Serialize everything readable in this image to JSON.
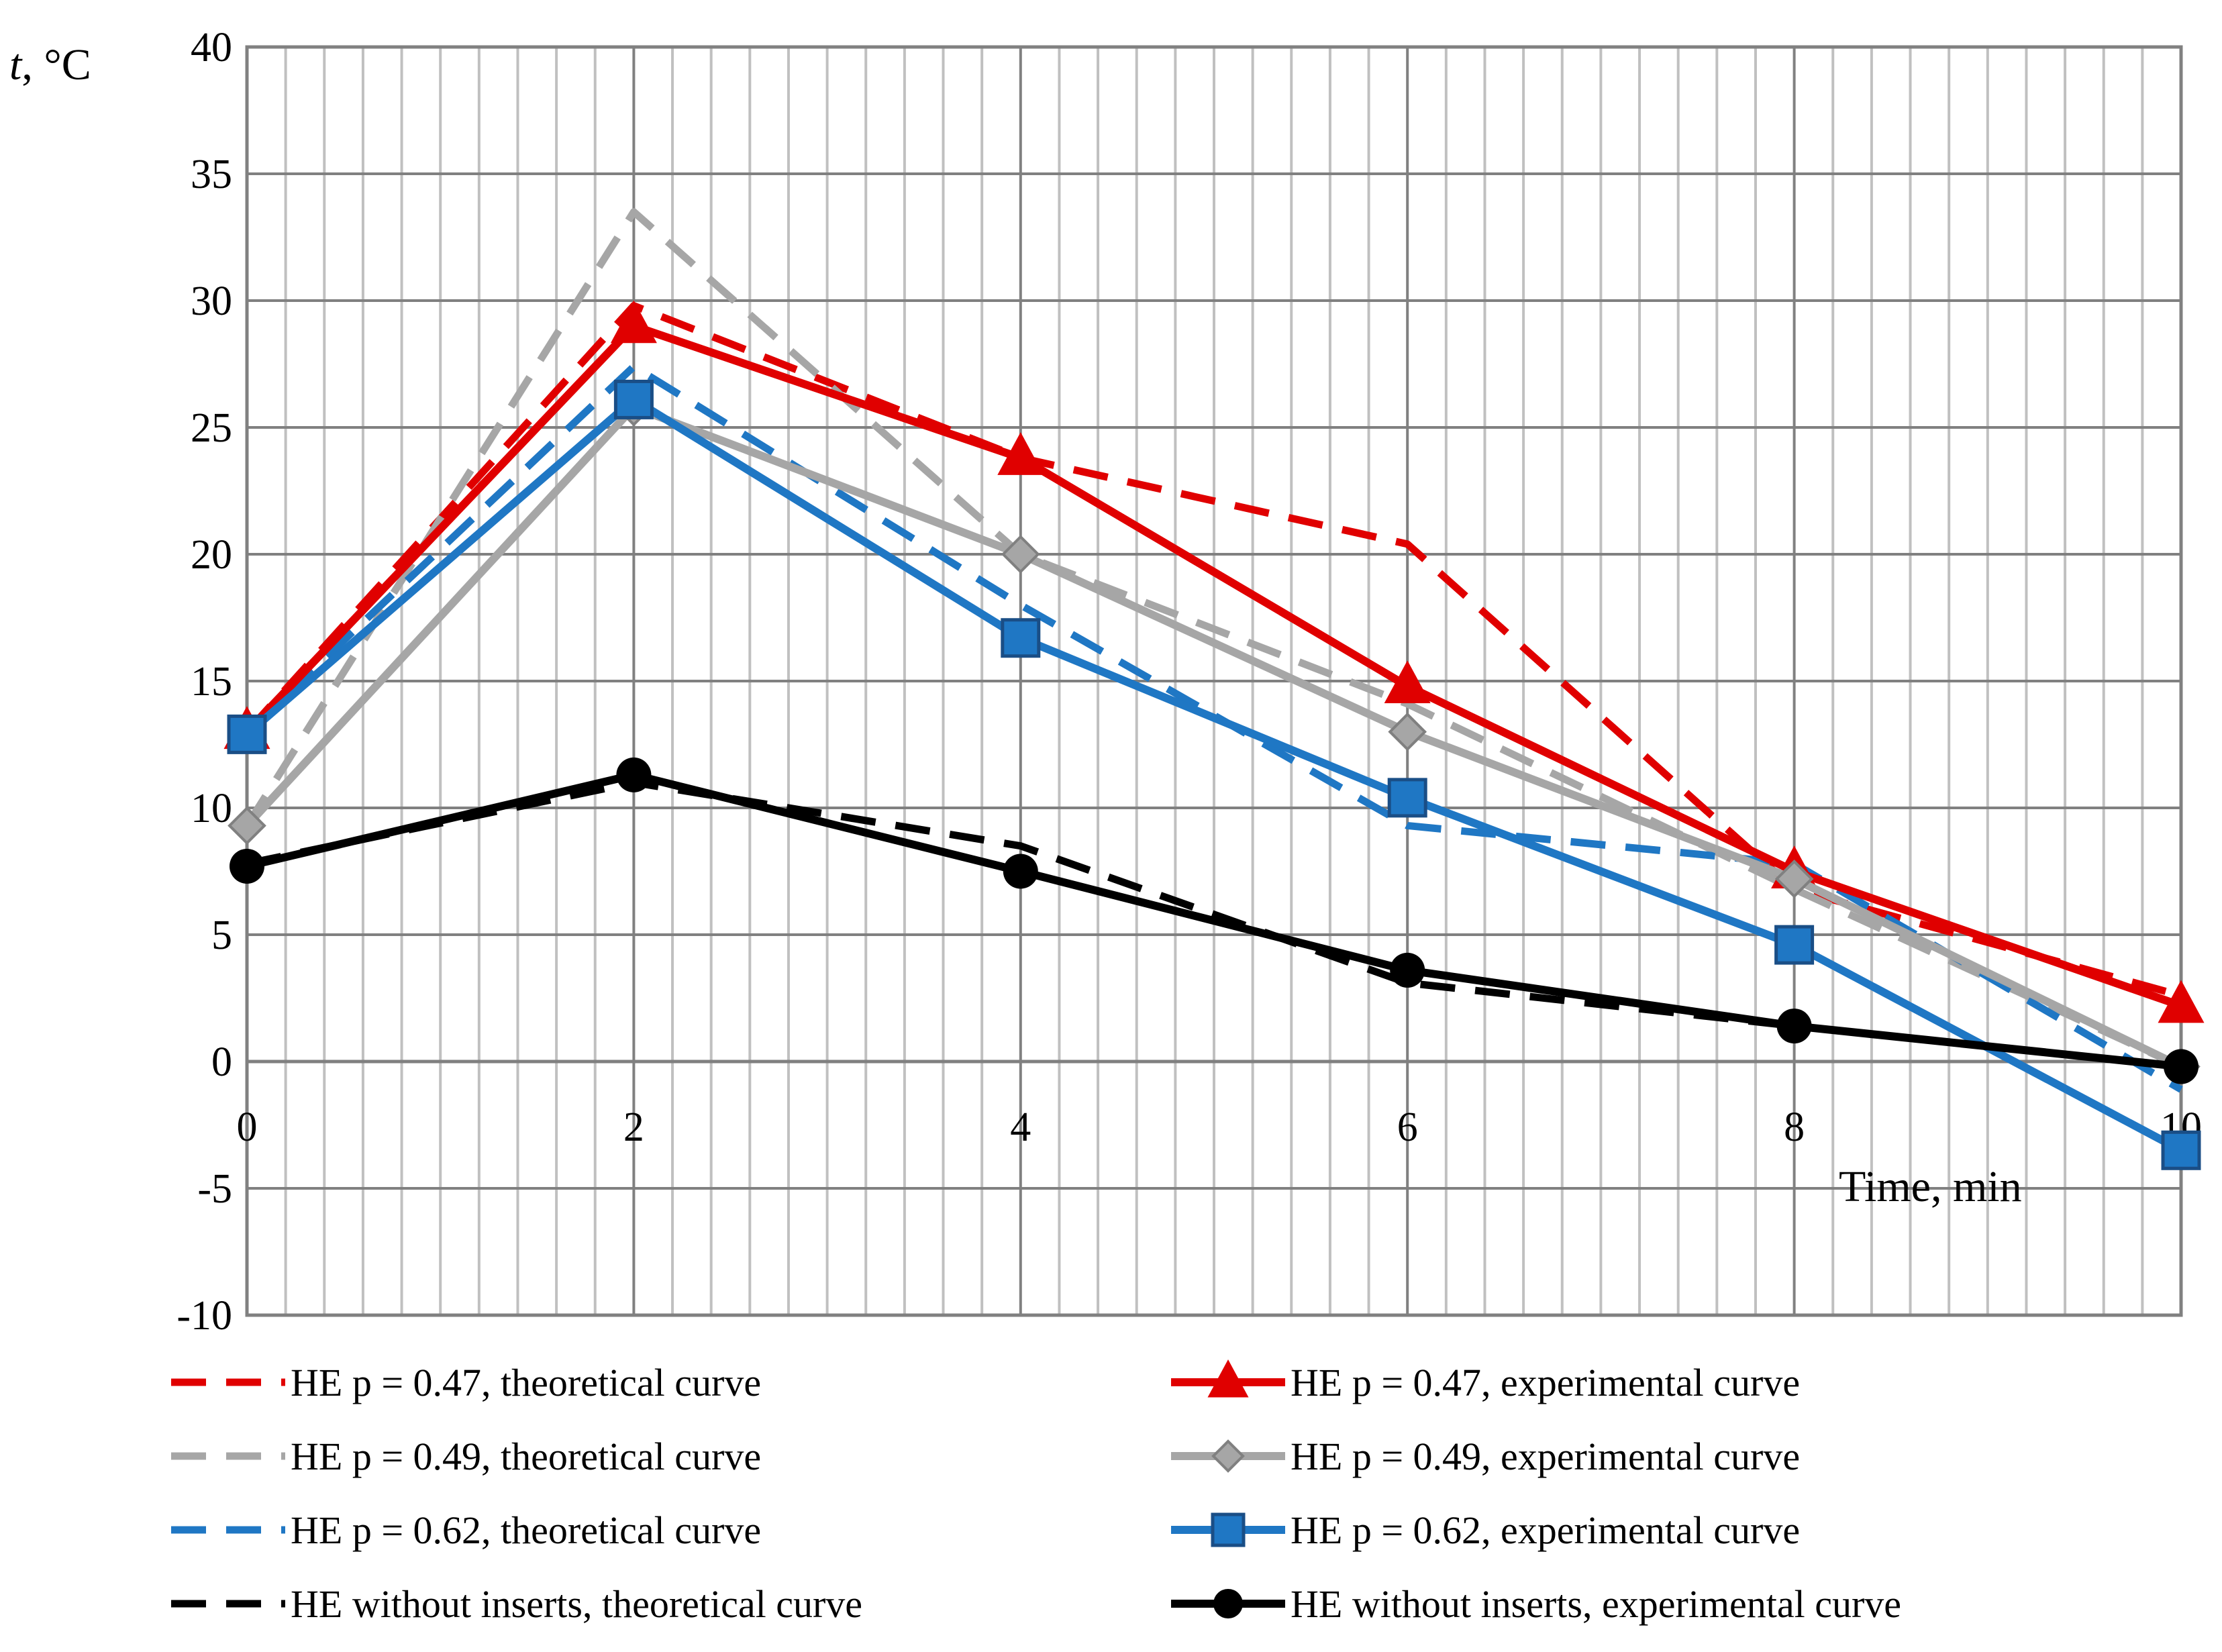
{
  "chart_data": {
    "type": "line",
    "title": "",
    "xlabel": "Time, min",
    "ylabel_italic": "t",
    "ylabel_unit": ", °C",
    "xlim": [
      0,
      10
    ],
    "ylim": [
      -10,
      40
    ],
    "x_major_ticks": [
      0,
      2,
      4,
      6,
      8,
      10
    ],
    "x_tick_labels": [
      "0",
      "2",
      "4",
      "6",
      "8",
      "10"
    ],
    "y_ticks": [
      -10,
      -5,
      0,
      5,
      10,
      15,
      20,
      25,
      30,
      35,
      40
    ],
    "y_tick_labels": [
      "-10",
      "-5",
      "0",
      "5",
      "10",
      "15",
      "20",
      "25",
      "30",
      "35",
      "40"
    ],
    "grid": true,
    "legend_position": "bottom",
    "series": [
      {
        "name": "HE p = 0.47, theoretical curve",
        "color": "#e00000",
        "dash": true,
        "marker": "none",
        "x": [
          0,
          2,
          4,
          6,
          8,
          10
        ],
        "y": [
          13,
          29.8,
          23.8,
          20.4,
          6.8,
          2.6
        ]
      },
      {
        "name": "HE p = 0.47, experimental curve",
        "color": "#e00000",
        "dash": false,
        "marker": "triangle",
        "x": [
          0,
          2,
          4,
          6,
          8,
          10
        ],
        "y": [
          13,
          29,
          23.8,
          14.8,
          7.5,
          2.2
        ]
      },
      {
        "name": "HE p = 0.49, theoretical curve",
        "color": "#a6a6a6",
        "dash": true,
        "marker": "none",
        "x": [
          0,
          2,
          4,
          6,
          8,
          10
        ],
        "y": [
          9.3,
          33.5,
          20,
          14.1,
          6.8,
          -0.2
        ]
      },
      {
        "name": "HE p = 0.49, experimental curve",
        "color": "#a6a6a6",
        "dash": false,
        "marker": "diamond",
        "x": [
          0,
          2,
          4,
          6,
          8,
          10
        ],
        "y": [
          9.3,
          25.8,
          20,
          13,
          7.2,
          -0.2
        ]
      },
      {
        "name": "HE p = 0.62, theoretical curve",
        "color": "#1f77c4",
        "dash": true,
        "marker": "none",
        "x": [
          0,
          2,
          4,
          6,
          8,
          10
        ],
        "y": [
          13,
          27.4,
          18,
          9.3,
          7.8,
          -1.1
        ]
      },
      {
        "name": "HE p = 0.62, experimental curve",
        "color": "#1f77c4",
        "dash": false,
        "marker": "square",
        "x": [
          0,
          2,
          4,
          6,
          8,
          10
        ],
        "y": [
          12.9,
          26.1,
          16.7,
          10.4,
          4.6,
          -3.5
        ]
      },
      {
        "name": "HE without inserts, theoretical curve",
        "color": "#000000",
        "dash": true,
        "marker": "none",
        "x": [
          0,
          2,
          4,
          6,
          8,
          10
        ],
        "y": [
          7.8,
          11,
          8.5,
          3.1,
          1.4,
          -0.2
        ]
      },
      {
        "name": "HE without inserts, experimental curve",
        "color": "#000000",
        "dash": false,
        "marker": "circle",
        "x": [
          0,
          2,
          4,
          6,
          8,
          10
        ],
        "y": [
          7.7,
          11.3,
          7.5,
          3.6,
          1.4,
          -0.2
        ]
      }
    ]
  }
}
